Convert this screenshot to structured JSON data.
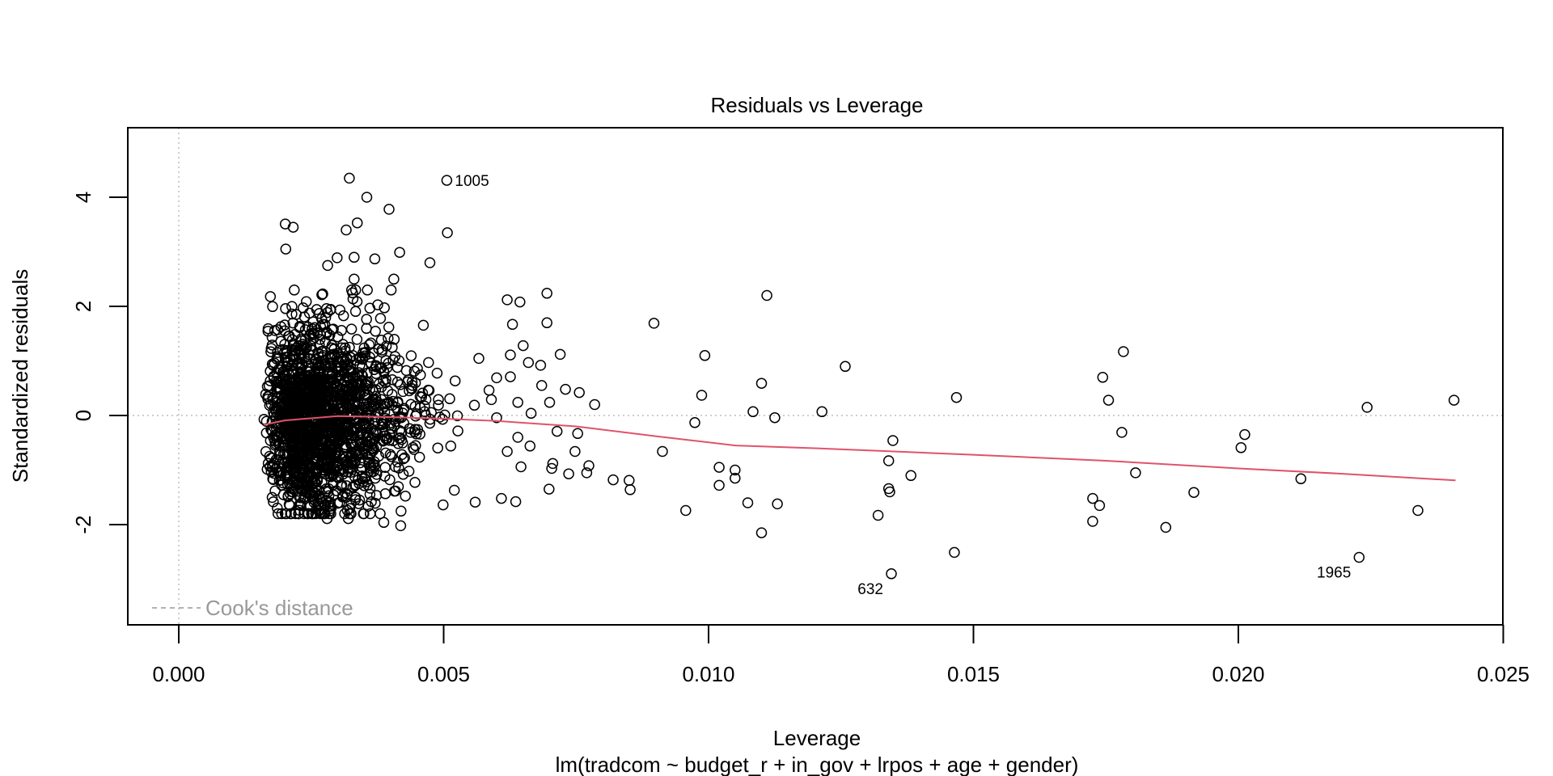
{
  "chart_data": {
    "type": "scatter",
    "title": "Residuals vs Leverage",
    "xlabel": "Leverage",
    "ylabel": "Standardized residuals",
    "subtitle": "lm(tradcom ~ budget_r + in_gov + lrpos + age + gender)",
    "xlim": [
      -0.00096,
      0.0253
    ],
    "ylim": [
      -3.8,
      5.25
    ],
    "x_ticks": [
      0.0,
      0.005,
      0.01,
      0.015,
      0.02,
      0.025
    ],
    "x_tick_labels": [
      "0.000",
      "0.005",
      "0.010",
      "0.015",
      "0.020",
      "0.025"
    ],
    "y_ticks": [
      -2,
      0,
      2,
      4
    ],
    "y_tick_labels": [
      "-2",
      "0",
      "2",
      "4"
    ],
    "legend": {
      "label": "Cook's distance",
      "placement": "bottom-left",
      "color": "#999999"
    },
    "reference_lines": {
      "x": 0,
      "y": 0,
      "color": "#bebebe"
    },
    "smooth_color": "#DF536B",
    "point_color": "#000000",
    "labeled_points": [
      {
        "label": "1005",
        "x": 0.00506,
        "y": 4.31,
        "side": "right"
      },
      {
        "label": "632",
        "x": 0.01345,
        "y": -2.9,
        "side": "left"
      },
      {
        "label": "1965",
        "x": 0.02228,
        "y": -2.6,
        "side": "left"
      }
    ],
    "dense_cluster": {
      "n": 1800,
      "x_range": [
        0.0016,
        0.0062
      ],
      "y_range": [
        -1.8,
        2.3
      ]
    },
    "points": [
      [
        0.00322,
        4.35
      ],
      [
        0.00355,
        4.0
      ],
      [
        0.00397,
        3.78
      ],
      [
        0.00506,
        4.31
      ],
      [
        0.00507,
        3.35
      ],
      [
        0.00201,
        3.51
      ],
      [
        0.00216,
        3.45
      ],
      [
        0.00202,
        3.05
      ],
      [
        0.00316,
        3.4
      ],
      [
        0.00337,
        3.53
      ],
      [
        0.00417,
        2.99
      ],
      [
        0.00474,
        2.8
      ],
      [
        0.00331,
        2.9
      ],
      [
        0.0037,
        2.87
      ],
      [
        0.00299,
        2.89
      ],
      [
        0.00281,
        2.75
      ],
      [
        0.00406,
        2.5
      ],
      [
        0.00331,
        2.5
      ],
      [
        0.0028,
        -1.89
      ],
      [
        0.0032,
        -1.89
      ],
      [
        0.00387,
        -1.96
      ],
      [
        0.00419,
        -2.02
      ],
      [
        0.00173,
        2.18
      ],
      [
        0.0062,
        2.12
      ],
      [
        0.00644,
        2.08
      ],
      [
        0.00695,
        2.24
      ],
      [
        0.00695,
        1.7
      ],
      [
        0.0063,
        1.67
      ],
      [
        0.0072,
        1.12
      ],
      [
        0.00897,
        1.69
      ],
      [
        0.00626,
        1.11
      ],
      [
        0.0065,
        1.28
      ],
      [
        0.0066,
        0.97
      ],
      [
        0.00683,
        0.92
      ],
      [
        0.0073,
        0.48
      ],
      [
        0.00756,
        0.42
      ],
      [
        0.00785,
        0.2
      ],
      [
        0.00685,
        0.55
      ],
      [
        0.007,
        0.24
      ],
      [
        0.00665,
        0.04
      ],
      [
        0.00714,
        -0.29
      ],
      [
        0.00753,
        -0.33
      ],
      [
        0.00748,
        -0.66
      ],
      [
        0.00706,
        -0.88
      ],
      [
        0.00704,
        -0.97
      ],
      [
        0.00774,
        -0.92
      ],
      [
        0.0077,
        -1.05
      ],
      [
        0.00736,
        -1.07
      ],
      [
        0.00699,
        -1.35
      ],
      [
        0.0082,
        -1.18
      ],
      [
        0.0085,
        -1.19
      ],
      [
        0.00852,
        -1.36
      ],
      [
        0.00663,
        -0.56
      ],
      [
        0.00646,
        -0.94
      ],
      [
        0.00636,
        -1.58
      ],
      [
        0.00609,
        -1.52
      ],
      [
        0.0064,
        -0.4
      ],
      [
        0.0062,
        -0.66
      ],
      [
        0.006,
        -0.04
      ],
      [
        0.0059,
        0.29
      ],
      [
        0.0064,
        0.24
      ],
      [
        0.00626,
        0.71
      ],
      [
        0.006,
        0.69
      ],
      [
        0.00993,
        1.1
      ],
      [
        0.00987,
        0.37
      ],
      [
        0.00974,
        -0.13
      ],
      [
        0.00913,
        -0.66
      ],
      [
        0.00957,
        -1.74
      ],
      [
        0.0102,
        -0.95
      ],
      [
        0.0102,
        -1.28
      ],
      [
        0.0105,
        -1.0
      ],
      [
        0.0105,
        -1.15
      ],
      [
        0.0111,
        2.2
      ],
      [
        0.011,
        0.59
      ],
      [
        0.01084,
        0.07
      ],
      [
        0.01125,
        -0.04
      ],
      [
        0.01074,
        -1.6
      ],
      [
        0.0113,
        -1.62
      ],
      [
        0.011,
        -2.15
      ],
      [
        0.01258,
        0.9
      ],
      [
        0.01214,
        0.07
      ],
      [
        0.0132,
        -1.83
      ],
      [
        0.0134,
        -0.83
      ],
      [
        0.0134,
        -1.34
      ],
      [
        0.01342,
        -1.4
      ],
      [
        0.01348,
        -0.46
      ],
      [
        0.01382,
        -1.1
      ],
      [
        0.01345,
        -2.9
      ],
      [
        0.01468,
        0.33
      ],
      [
        0.01464,
        -2.51
      ],
      [
        0.01744,
        0.7
      ],
      [
        0.01755,
        0.28
      ],
      [
        0.01783,
        1.17
      ],
      [
        0.0178,
        -0.31
      ],
      [
        0.01725,
        -1.52
      ],
      [
        0.01738,
        -1.65
      ],
      [
        0.01725,
        -1.94
      ],
      [
        0.01806,
        -1.05
      ],
      [
        0.01863,
        -2.05
      ],
      [
        0.01916,
        -1.41
      ],
      [
        0.02012,
        -0.35
      ],
      [
        0.02005,
        -0.59
      ],
      [
        0.02118,
        -1.16
      ],
      [
        0.02243,
        0.15
      ],
      [
        0.02228,
        -2.6
      ],
      [
        0.02339,
        -1.74
      ],
      [
        0.02407,
        0.28
      ]
    ],
    "smooth": [
      [
        0.0016,
        -0.17
      ],
      [
        0.002,
        -0.09
      ],
      [
        0.003,
        -0.01
      ],
      [
        0.004,
        -0.03
      ],
      [
        0.005,
        -0.06
      ],
      [
        0.006,
        -0.1
      ],
      [
        0.0075,
        -0.2
      ],
      [
        0.009,
        -0.38
      ],
      [
        0.0105,
        -0.55
      ],
      [
        0.012,
        -0.6
      ],
      [
        0.0135,
        -0.66
      ],
      [
        0.015,
        -0.72
      ],
      [
        0.0175,
        -0.83
      ],
      [
        0.02,
        -0.97
      ],
      [
        0.022,
        -1.07
      ],
      [
        0.0241,
        -1.19
      ]
    ]
  }
}
